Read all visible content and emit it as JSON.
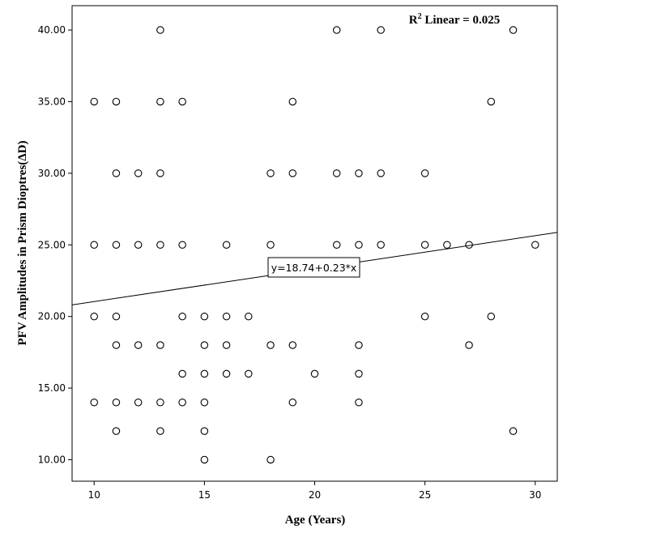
{
  "chart_data": {
    "type": "scatter",
    "xlabel": "Age (Years)",
    "ylabel": "PFV Amplitudes in Prism Dioptres(ΔD)",
    "xlim": [
      9,
      31
    ],
    "ylim": [
      8.5,
      41.7
    ],
    "x_ticks": [
      10,
      15,
      20,
      25,
      30
    ],
    "y_ticks": [
      10,
      15,
      20,
      25,
      30,
      35,
      40
    ],
    "x_tick_labels": [
      "10",
      "15",
      "20",
      "25",
      "30"
    ],
    "y_tick_labels": [
      "10.00",
      "15.00",
      "20.00",
      "25.00",
      "30.00",
      "35.00",
      "40.00"
    ],
    "grid": false,
    "r2_label": "R² Linear = 0.025",
    "fit_line": {
      "intercept": 18.74,
      "slope": 0.23,
      "label": "y=18.74+0.23*x"
    },
    "points": [
      {
        "x": 10,
        "y": 35
      },
      {
        "x": 10,
        "y": 25
      },
      {
        "x": 10,
        "y": 20
      },
      {
        "x": 10,
        "y": 14
      },
      {
        "x": 11,
        "y": 35
      },
      {
        "x": 11,
        "y": 30
      },
      {
        "x": 11,
        "y": 25
      },
      {
        "x": 11,
        "y": 20
      },
      {
        "x": 11,
        "y": 18
      },
      {
        "x": 11,
        "y": 14
      },
      {
        "x": 11,
        "y": 12
      },
      {
        "x": 12,
        "y": 30
      },
      {
        "x": 12,
        "y": 25
      },
      {
        "x": 12,
        "y": 18
      },
      {
        "x": 12,
        "y": 14
      },
      {
        "x": 13,
        "y": 40
      },
      {
        "x": 13,
        "y": 35
      },
      {
        "x": 13,
        "y": 30
      },
      {
        "x": 13,
        "y": 25
      },
      {
        "x": 13,
        "y": 18
      },
      {
        "x": 13,
        "y": 14
      },
      {
        "x": 13,
        "y": 12
      },
      {
        "x": 14,
        "y": 35
      },
      {
        "x": 14,
        "y": 25
      },
      {
        "x": 14,
        "y": 20
      },
      {
        "x": 14,
        "y": 16
      },
      {
        "x": 14,
        "y": 14
      },
      {
        "x": 15,
        "y": 20
      },
      {
        "x": 15,
        "y": 18
      },
      {
        "x": 15,
        "y": 16
      },
      {
        "x": 15,
        "y": 14
      },
      {
        "x": 15,
        "y": 12
      },
      {
        "x": 15,
        "y": 10
      },
      {
        "x": 16,
        "y": 25
      },
      {
        "x": 16,
        "y": 20
      },
      {
        "x": 16,
        "y": 18
      },
      {
        "x": 16,
        "y": 16
      },
      {
        "x": 17,
        "y": 20
      },
      {
        "x": 17,
        "y": 16
      },
      {
        "x": 18,
        "y": 30
      },
      {
        "x": 18,
        "y": 25
      },
      {
        "x": 18,
        "y": 18
      },
      {
        "x": 18,
        "y": 10
      },
      {
        "x": 19,
        "y": 35
      },
      {
        "x": 19,
        "y": 30
      },
      {
        "x": 19,
        "y": 18
      },
      {
        "x": 19,
        "y": 14
      },
      {
        "x": 20,
        "y": 16
      },
      {
        "x": 21,
        "y": 40
      },
      {
        "x": 21,
        "y": 30
      },
      {
        "x": 21,
        "y": 25
      },
      {
        "x": 22,
        "y": 30
      },
      {
        "x": 22,
        "y": 25
      },
      {
        "x": 22,
        "y": 18
      },
      {
        "x": 22,
        "y": 16
      },
      {
        "x": 22,
        "y": 14
      },
      {
        "x": 23,
        "y": 40
      },
      {
        "x": 23,
        "y": 30
      },
      {
        "x": 23,
        "y": 25
      },
      {
        "x": 25,
        "y": 30
      },
      {
        "x": 25,
        "y": 25
      },
      {
        "x": 25,
        "y": 20
      },
      {
        "x": 26,
        "y": 25
      },
      {
        "x": 27,
        "y": 25
      },
      {
        "x": 27,
        "y": 18
      },
      {
        "x": 28,
        "y": 35
      },
      {
        "x": 28,
        "y": 20
      },
      {
        "x": 29,
        "y": 40
      },
      {
        "x": 29,
        "y": 12
      },
      {
        "x": 30,
        "y": 25
      }
    ],
    "marker_color": "#000000"
  }
}
